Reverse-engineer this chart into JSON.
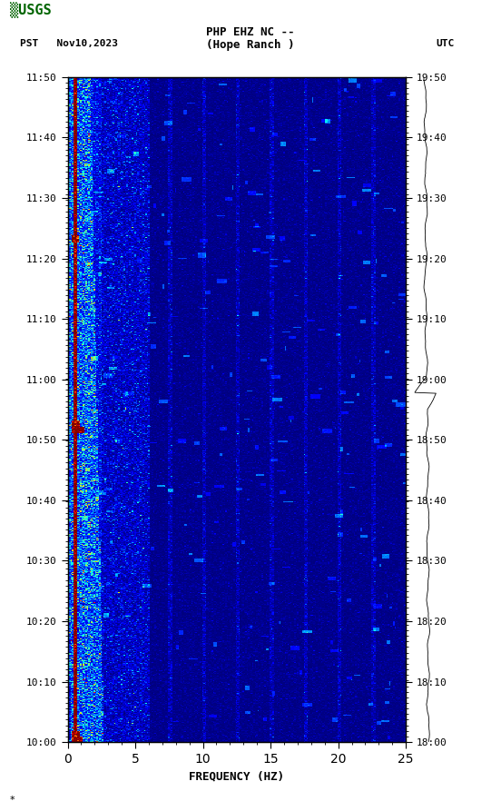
{
  "title_line1": "PHP EHZ NC --",
  "title_line2": "(Hope Ranch )",
  "left_label": "PST   Nov10,2023",
  "right_label": "UTC",
  "xlabel": "FREQUENCY (HZ)",
  "freq_min": 0,
  "freq_max": 25,
  "left_yticks": [
    "10:00",
    "10:10",
    "10:20",
    "10:30",
    "10:40",
    "10:50",
    "11:00",
    "11:10",
    "11:20",
    "11:30",
    "11:40",
    "11:50"
  ],
  "right_yticks": [
    "18:00",
    "18:10",
    "18:20",
    "18:30",
    "18:40",
    "18:50",
    "19:00",
    "19:10",
    "19:20",
    "19:30",
    "19:40",
    "19:50"
  ],
  "xticks": [
    0,
    5,
    10,
    15,
    20,
    25
  ],
  "bg_color": "#ffffff",
  "colormap": "jet",
  "fig_width": 5.52,
  "fig_height": 8.93
}
